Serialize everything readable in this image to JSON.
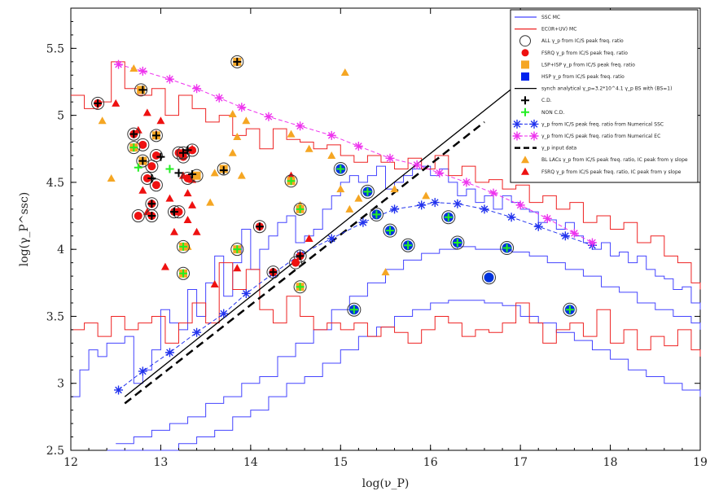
{
  "chart_data": {
    "type": "scatter",
    "title": "",
    "xlabel": "log(ν_P)",
    "ylabel": "log(γ_P^ssc)",
    "xlim": [
      12,
      19
    ],
    "ylim": [
      2.5,
      5.8
    ],
    "xticks": [
      12,
      13,
      14,
      15,
      16,
      17,
      18,
      19
    ],
    "yticks": [
      2.5,
      3,
      3.5,
      4,
      4.5,
      5,
      5.5
    ],
    "legend_position": "top-right",
    "legend": [
      {
        "label": "SSC MC",
        "style": "line",
        "color": "#4444ff"
      },
      {
        "label": "EC(IR+UV) MC",
        "style": "line",
        "color": "#ee2222"
      },
      {
        "label": "ALL γ_p from IC/S peak freq. ratio",
        "style": "open-circle",
        "color": "#333333"
      },
      {
        "label": "FSRQ γ_p from IC/S peak freq. ratio",
        "style": "circle",
        "color": "#ee1111"
      },
      {
        "label": "LSP+ISP γ_p from IC/S peak freq. ratio",
        "style": "square",
        "color": "#f5a623"
      },
      {
        "label": "HSP γ_p from IC/S peak freq. ratio",
        "style": "square",
        "color": "#0022ee"
      },
      {
        "label": "synch analytical γ_p=3.2*10^4.1 γ_p BS with (BS=1)",
        "style": "line",
        "color": "#000000"
      },
      {
        "label": "C.D.",
        "style": "plus",
        "color": "#000000"
      },
      {
        "label": "NON C.D.",
        "style": "plus",
        "color": "#22ee22"
      },
      {
        "label": "γ_p from IC/S peak freq. ratio from Numerical SSC",
        "style": "star-dash",
        "color": "#2233ee"
      },
      {
        "label": "γ_p from IC/S peak freq. ratio from Numerical EC",
        "style": "star-dash",
        "color": "#ee33ee"
      },
      {
        "label": "γ_p input data",
        "style": "dashed",
        "color": "#000000"
      },
      {
        "label": "BL LACs γ_p from IC/S peak freq. ratio, IC peak from γ slope",
        "style": "triangle",
        "color": "#f5a623"
      },
      {
        "label": "FSRQ γ_p from IC/S peak freq. ratio, IC peak from γ slope",
        "style": "triangle",
        "color": "#ee1111"
      }
    ],
    "series": [
      {
        "name": "SSC MC upper",
        "kind": "step",
        "color": "#4444ff",
        "x": [
          12,
          12.1,
          12.2,
          12.3,
          12.4,
          12.5,
          12.6,
          12.7,
          12.8,
          12.9,
          13,
          13.1,
          13.2,
          13.3,
          13.4,
          13.5,
          13.6,
          13.7,
          13.8,
          13.9,
          14,
          14.1,
          14.2,
          14.3,
          14.4,
          14.5,
          14.6,
          14.7,
          14.8,
          14.9,
          15,
          15.1,
          15.2,
          15.3,
          15.4,
          15.5,
          15.6,
          15.7,
          15.8,
          15.9,
          16,
          16.1,
          16.2,
          16.3,
          16.4,
          16.5,
          16.6,
          16.7,
          16.8,
          16.9,
          17,
          17.1,
          17.2,
          17.3,
          17.4,
          17.5,
          17.6,
          17.7,
          17.8,
          17.9,
          18,
          18.1,
          18.2,
          18.3,
          18.4,
          18.5,
          18.6,
          18.7,
          18.8,
          18.9,
          19
        ],
        "y": [
          2.9,
          3.1,
          3.25,
          3.2,
          3.3,
          3.3,
          3.35,
          3.0,
          3.1,
          3.25,
          3.55,
          3.45,
          3.4,
          3.7,
          3.5,
          3.75,
          3.95,
          3.65,
          3.9,
          4.15,
          3.85,
          4.0,
          4.1,
          4.2,
          4.25,
          4.05,
          4.1,
          4.15,
          4.3,
          4.4,
          4.5,
          4.55,
          4.5,
          4.55,
          4.62,
          4.45,
          4.5,
          4.55,
          4.6,
          4.62,
          4.55,
          4.6,
          4.5,
          4.4,
          4.45,
          4.35,
          4.4,
          4.3,
          4.4,
          4.35,
          4.3,
          4.28,
          4.2,
          4.22,
          4.15,
          4.2,
          4.1,
          4.05,
          4.0,
          4.05,
          3.95,
          3.98,
          3.9,
          3.95,
          3.85,
          3.8,
          3.78,
          3.7,
          3.72,
          3.6,
          3.55
        ]
      },
      {
        "name": "SSC MC lower",
        "kind": "step",
        "color": "#4444ff",
        "x": [
          12.5,
          12.7,
          12.9,
          13.1,
          13.3,
          13.5,
          13.7,
          13.9,
          14.1,
          14.3,
          14.5,
          14.7,
          14.9,
          15.1,
          15.3,
          15.5,
          15.7,
          15.9,
          16.1,
          16.3,
          16.5,
          16.7,
          16.9,
          17.1,
          17.3,
          17.5,
          17.7,
          17.9,
          18.1,
          18.3,
          18.5,
          18.7,
          18.9,
          19
        ],
        "y": [
          2.55,
          2.6,
          2.65,
          2.7,
          2.75,
          2.85,
          2.9,
          3.0,
          3.05,
          3.2,
          3.3,
          3.4,
          3.55,
          3.65,
          3.75,
          3.85,
          3.92,
          3.97,
          4.0,
          4.02,
          4.0,
          4.0,
          3.98,
          3.95,
          3.9,
          3.85,
          3.8,
          3.72,
          3.68,
          3.6,
          3.55,
          3.5,
          3.45,
          3.4
        ]
      },
      {
        "name": "SSC MC bottom",
        "kind": "step",
        "color": "#4444ff",
        "x": [
          12.4,
          12.6,
          12.8,
          13.0,
          13.2,
          13.4,
          13.6,
          13.8,
          14.0,
          14.2,
          14.4,
          14.6,
          14.8,
          15.0,
          15.2,
          15.4,
          15.6,
          15.8,
          16.0,
          16.2,
          16.4,
          16.6,
          16.8,
          17.0,
          17.2,
          17.4,
          17.6,
          17.8,
          18.0,
          18.2,
          18.4,
          18.6,
          18.8,
          19
        ],
        "y": [
          2.5,
          2.5,
          2.5,
          2.5,
          2.55,
          2.6,
          2.65,
          2.75,
          2.8,
          2.9,
          3.0,
          3.05,
          3.15,
          3.25,
          3.35,
          3.42,
          3.5,
          3.55,
          3.6,
          3.62,
          3.62,
          3.6,
          3.58,
          3.5,
          3.45,
          3.38,
          3.32,
          3.25,
          3.18,
          3.1,
          3.05,
          3.0,
          2.95,
          2.9
        ]
      },
      {
        "name": "EC MC upper",
        "kind": "step",
        "color": "#ee2222",
        "x": [
          12,
          12.15,
          12.3,
          12.45,
          12.6,
          12.75,
          12.9,
          13.05,
          13.2,
          13.35,
          13.5,
          13.65,
          13.8,
          13.95,
          14.1,
          14.25,
          14.4,
          14.55,
          14.7,
          14.85,
          15,
          15.15,
          15.3,
          15.45,
          15.6,
          15.75,
          15.9,
          16.05,
          16.2,
          16.35,
          16.5,
          16.65,
          16.8,
          16.95,
          17.1,
          17.25,
          17.4,
          17.55,
          17.7,
          17.85,
          18,
          18.15,
          18.3,
          18.45,
          18.6,
          18.75,
          18.9,
          19
        ],
        "y": [
          5.15,
          5.05,
          5.1,
          5.4,
          5.2,
          5.15,
          5.2,
          5.0,
          5.15,
          5.05,
          4.95,
          5.0,
          4.85,
          4.9,
          4.75,
          4.9,
          4.82,
          4.8,
          4.75,
          4.78,
          4.7,
          4.65,
          4.7,
          4.65,
          4.6,
          4.68,
          4.6,
          4.7,
          4.55,
          4.62,
          4.5,
          4.52,
          4.45,
          4.48,
          4.35,
          4.4,
          4.3,
          4.35,
          4.2,
          4.25,
          4.15,
          4.2,
          4.05,
          4.1,
          3.95,
          3.9,
          3.75,
          3.7
        ]
      },
      {
        "name": "EC MC lower",
        "kind": "step",
        "color": "#ee2222",
        "x": [
          12,
          12.15,
          12.3,
          12.45,
          12.6,
          12.75,
          12.9,
          13.05,
          13.2,
          13.35,
          13.5,
          13.65,
          13.8,
          13.95,
          14.1,
          14.25,
          14.4,
          14.55,
          14.7,
          14.85,
          15,
          15.15,
          15.3,
          15.45,
          15.6,
          15.75,
          15.9,
          16.05,
          16.2,
          16.35,
          16.5,
          16.65,
          16.8,
          16.95,
          17.1,
          17.25,
          17.4,
          17.55,
          17.7,
          17.85,
          18,
          18.15,
          18.3,
          18.45,
          18.6,
          18.75,
          18.9,
          19
        ],
        "y": [
          3.4,
          3.45,
          3.35,
          3.5,
          3.4,
          3.45,
          3.5,
          3.3,
          3.45,
          3.6,
          3.45,
          3.9,
          3.7,
          3.85,
          3.55,
          3.45,
          3.65,
          3.5,
          3.4,
          3.45,
          3.4,
          3.45,
          3.35,
          3.42,
          3.38,
          3.3,
          3.4,
          3.5,
          3.45,
          3.35,
          3.4,
          3.38,
          3.45,
          3.6,
          3.45,
          3.3,
          3.4,
          3.45,
          3.35,
          3.55,
          3.3,
          3.4,
          3.25,
          3.35,
          3.28,
          3.4,
          3.25,
          3.2
        ]
      },
      {
        "name": "synch analytical",
        "kind": "line",
        "color": "#000000",
        "dash": "",
        "x": [
          12.6,
          17.0
        ],
        "y": [
          2.9,
          5.25
        ]
      },
      {
        "name": "γ_p input data",
        "kind": "line",
        "color": "#000000",
        "dash": "10,6",
        "x": [
          12.6,
          16.6
        ],
        "y": [
          2.85,
          4.95
        ]
      },
      {
        "name": "Numerical SSC",
        "kind": "star-line",
        "color": "#2233ee",
        "x": [
          12.53,
          12.8,
          13.1,
          13.4,
          13.7,
          13.95,
          14.25,
          14.55,
          14.9,
          15.25,
          15.6,
          15.9,
          16.05,
          16.3,
          16.6,
          16.9,
          17.2,
          17.5,
          17.8
        ],
        "y": [
          2.95,
          3.09,
          3.23,
          3.38,
          3.52,
          3.67,
          3.82,
          3.96,
          4.08,
          4.2,
          4.3,
          4.33,
          4.35,
          4.34,
          4.3,
          4.24,
          4.17,
          4.1,
          4.03
        ]
      },
      {
        "name": "Numerical EC",
        "kind": "star-line",
        "color": "#ee33ee",
        "x": [
          12.53,
          12.8,
          13.1,
          13.4,
          13.65,
          13.9,
          14.2,
          14.55,
          14.9,
          15.2,
          15.55,
          15.85,
          16.1,
          16.4,
          16.7,
          17.0,
          17.3,
          17.6,
          17.8
        ],
        "y": [
          5.38,
          5.33,
          5.27,
          5.2,
          5.13,
          5.06,
          4.99,
          4.92,
          4.85,
          4.77,
          4.68,
          4.63,
          4.57,
          4.5,
          4.42,
          4.33,
          4.23,
          4.12,
          4.05
        ]
      }
    ],
    "points": {
      "fsrq": [
        [
          12.3,
          5.09
        ],
        [
          12.7,
          4.86
        ],
        [
          12.8,
          4.78
        ],
        [
          12.9,
          4.62
        ],
        [
          12.95,
          4.48
        ],
        [
          12.9,
          4.34
        ],
        [
          12.75,
          4.25
        ],
        [
          12.9,
          4.25
        ],
        [
          13.15,
          4.28
        ],
        [
          13.2,
          4.28
        ],
        [
          13.3,
          4.53
        ],
        [
          13.25,
          4.69
        ],
        [
          13.2,
          4.72
        ],
        [
          12.85,
          4.53
        ],
        [
          13.25,
          4.72
        ],
        [
          14.1,
          4.17
        ],
        [
          14.25,
          3.83
        ],
        [
          14.55,
          3.95
        ],
        [
          14.5,
          3.9
        ],
        [
          12.95,
          4.7
        ],
        [
          13.35,
          4.74
        ]
      ],
      "lsp": [
        [
          12.7,
          4.76
        ],
        [
          12.8,
          4.66
        ],
        [
          13.7,
          4.6
        ],
        [
          14.45,
          4.51
        ],
        [
          14.55,
          4.3
        ],
        [
          13.85,
          4.0
        ],
        [
          13.25,
          4.02
        ],
        [
          13.25,
          3.82
        ],
        [
          14.55,
          3.72
        ],
        [
          12.78,
          5.19
        ],
        [
          12.95,
          4.85
        ],
        [
          13.85,
          5.4
        ],
        [
          13.4,
          4.55
        ]
      ],
      "hsp": [
        [
          15.0,
          4.6
        ],
        [
          15.3,
          4.43
        ],
        [
          15.4,
          4.26
        ],
        [
          15.55,
          4.14
        ],
        [
          15.75,
          4.03
        ],
        [
          16.2,
          4.24
        ],
        [
          16.3,
          4.05
        ],
        [
          16.65,
          3.79
        ],
        [
          16.85,
          4.01
        ],
        [
          17.55,
          3.55
        ],
        [
          15.15,
          3.55
        ]
      ],
      "cd": [
        [
          12.3,
          5.09
        ],
        [
          12.7,
          4.86
        ],
        [
          12.8,
          4.66
        ],
        [
          12.8,
          5.19
        ],
        [
          12.95,
          4.85
        ],
        [
          13.0,
          4.69
        ],
        [
          12.9,
          4.53
        ],
        [
          12.9,
          4.34
        ],
        [
          12.9,
          4.25
        ],
        [
          13.2,
          4.57
        ],
        [
          13.3,
          4.74
        ],
        [
          13.35,
          4.56
        ],
        [
          13.25,
          4.72
        ],
        [
          13.7,
          4.59
        ],
        [
          13.85,
          5.4
        ],
        [
          14.1,
          4.17
        ],
        [
          14.25,
          3.83
        ],
        [
          14.55,
          3.95
        ],
        [
          13.15,
          4.28
        ]
      ],
      "noncd": [
        [
          12.75,
          4.61
        ],
        [
          12.7,
          4.76
        ],
        [
          13.1,
          4.6
        ],
        [
          13.25,
          4.02
        ],
        [
          13.85,
          4.0
        ],
        [
          14.45,
          4.51
        ],
        [
          14.55,
          4.3
        ],
        [
          14.55,
          3.72
        ],
        [
          13.25,
          3.82
        ],
        [
          15.0,
          4.6
        ],
        [
          15.3,
          4.43
        ],
        [
          15.4,
          4.26
        ],
        [
          15.55,
          4.14
        ],
        [
          15.75,
          4.03
        ],
        [
          16.2,
          4.24
        ],
        [
          16.3,
          4.05
        ],
        [
          16.85,
          4.01
        ],
        [
          17.55,
          3.55
        ],
        [
          15.15,
          3.55
        ]
      ],
      "tri_bl": [
        [
          12.35,
          4.96
        ],
        [
          12.45,
          4.53
        ],
        [
          12.7,
          5.35
        ],
        [
          13.6,
          4.57
        ],
        [
          13.55,
          4.35
        ],
        [
          13.8,
          5.01
        ],
        [
          13.8,
          4.72
        ],
        [
          13.95,
          4.96
        ],
        [
          13.9,
          4.55
        ],
        [
          14.45,
          4.86
        ],
        [
          14.65,
          4.75
        ],
        [
          14.9,
          4.7
        ],
        [
          15.05,
          5.32
        ],
        [
          15.1,
          4.3
        ],
        [
          15.0,
          4.45
        ],
        [
          15.2,
          4.38
        ],
        [
          15.5,
          3.83
        ],
        [
          15.6,
          4.45
        ],
        [
          15.95,
          4.4
        ],
        [
          14.55,
          4.33
        ],
        [
          13.85,
          4.84
        ],
        [
          13.3,
          4.02
        ],
        [
          14.65,
          4.08
        ]
      ],
      "tri_fsrq": [
        [
          12.5,
          5.09
        ],
        [
          12.75,
          4.89
        ],
        [
          12.85,
          5.02
        ],
        [
          13.0,
          4.96
        ],
        [
          12.95,
          4.86
        ],
        [
          13.35,
          4.75
        ],
        [
          13.35,
          4.52
        ],
        [
          13.35,
          4.33
        ],
        [
          13.3,
          4.22
        ],
        [
          13.1,
          4.38
        ],
        [
          13.15,
          4.13
        ],
        [
          13.4,
          4.13
        ],
        [
          13.05,
          3.87
        ],
        [
          13.25,
          4.55
        ],
        [
          12.85,
          4.28
        ],
        [
          13.6,
          3.74
        ],
        [
          13.85,
          3.86
        ],
        [
          14.65,
          4.08
        ],
        [
          14.45,
          4.55
        ],
        [
          13.3,
          4.42
        ],
        [
          12.8,
          4.44
        ]
      ]
    }
  }
}
